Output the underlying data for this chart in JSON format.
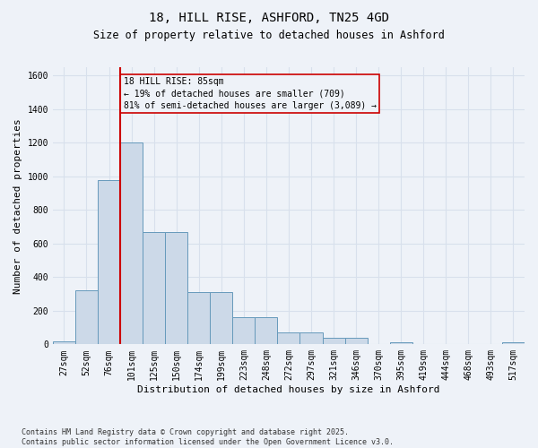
{
  "title_line1": "18, HILL RISE, ASHFORD, TN25 4GD",
  "title_line2": "Size of property relative to detached houses in Ashford",
  "xlabel": "Distribution of detached houses by size in Ashford",
  "ylabel": "Number of detached properties",
  "categories": [
    "27sqm",
    "52sqm",
    "76sqm",
    "101sqm",
    "125sqm",
    "150sqm",
    "174sqm",
    "199sqm",
    "223sqm",
    "248sqm",
    "272sqm",
    "297sqm",
    "321sqm",
    "346sqm",
    "370sqm",
    "395sqm",
    "419sqm",
    "444sqm",
    "468sqm",
    "493sqm",
    "517sqm"
  ],
  "values": [
    20,
    320,
    980,
    1200,
    670,
    670,
    310,
    310,
    160,
    160,
    70,
    70,
    40,
    40,
    0,
    10,
    0,
    0,
    0,
    0,
    10
  ],
  "bar_color": "#ccd9e8",
  "bar_edge_color": "#6699bb",
  "vline_color": "#cc0000",
  "annotation_text": "18 HILL RISE: 85sqm\n← 19% of detached houses are smaller (709)\n81% of semi-detached houses are larger (3,089) →",
  "annotation_box_color": "#cc0000",
  "ylim": [
    0,
    1650
  ],
  "yticks": [
    0,
    200,
    400,
    600,
    800,
    1000,
    1200,
    1400,
    1600
  ],
  "footnote": "Contains HM Land Registry data © Crown copyright and database right 2025.\nContains public sector information licensed under the Open Government Licence v3.0.",
  "bg_color": "#eef2f8",
  "grid_color": "#d8e0ec",
  "title_fontsize": 10,
  "subtitle_fontsize": 8.5,
  "axis_label_fontsize": 8,
  "tick_fontsize": 7,
  "annot_fontsize": 7,
  "footnote_fontsize": 6
}
